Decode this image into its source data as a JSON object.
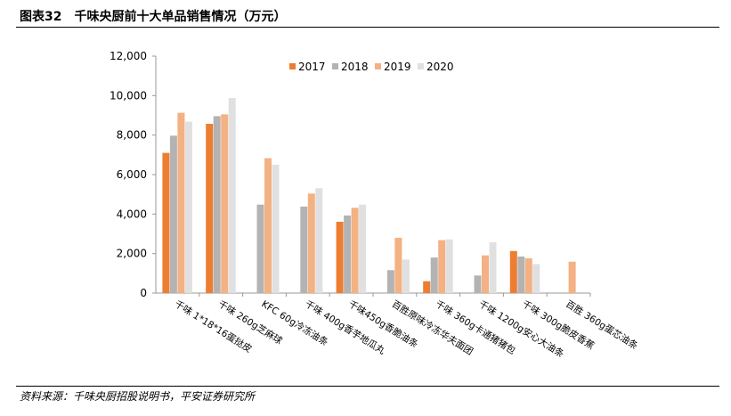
{
  "header": {
    "figure_no": "图表32",
    "title": "千味央厨前十大单品销售情况（万元）"
  },
  "footer": {
    "source": "资料来源：千味央厨招股说明书，平安证券研究所"
  },
  "chart_data": {
    "type": "bar",
    "title": "千味央厨前十大单品销售情况（万元）",
    "xlabel": "",
    "ylabel": "",
    "ylim": [
      0,
      12000
    ],
    "yticks": [
      0,
      2000,
      4000,
      6000,
      8000,
      10000,
      12000
    ],
    "ytick_labels": [
      "0",
      "2,000",
      "4,000",
      "6,000",
      "8,000",
      "10,000",
      "12,000"
    ],
    "legend_position": "top-right",
    "grid": false,
    "categories": [
      "千味 1*18*16蛋挞皮",
      "千味 260g芝麻球",
      "KFC 60g冷冻油条",
      "千味 400g香芋地瓜丸",
      "千味450g香脆油条",
      "百胜原味冷冻华夫面团",
      "千味 360g卡通猪猪包",
      "千味 1200g安心大油条",
      "千味 300g脆皮香蕉",
      "百胜 360g蛋芯油条"
    ],
    "series": [
      {
        "name": "2017",
        "color": "#ED7D31",
        "values": [
          7100,
          8570,
          null,
          null,
          3610,
          null,
          600,
          null,
          2130,
          null
        ]
      },
      {
        "name": "2018",
        "color": "#B3B3B3",
        "values": [
          7970,
          8960,
          4480,
          4380,
          3930,
          1160,
          1800,
          890,
          1850,
          null
        ]
      },
      {
        "name": "2019",
        "color": "#F4B183",
        "values": [
          9130,
          9050,
          6830,
          5040,
          4320,
          2800,
          2680,
          1910,
          1760,
          1590
        ]
      },
      {
        "name": "2020",
        "color": "#E0E0E0",
        "values": [
          8680,
          9880,
          6500,
          5310,
          4480,
          1700,
          2720,
          2570,
          1470,
          null
        ]
      }
    ]
  }
}
